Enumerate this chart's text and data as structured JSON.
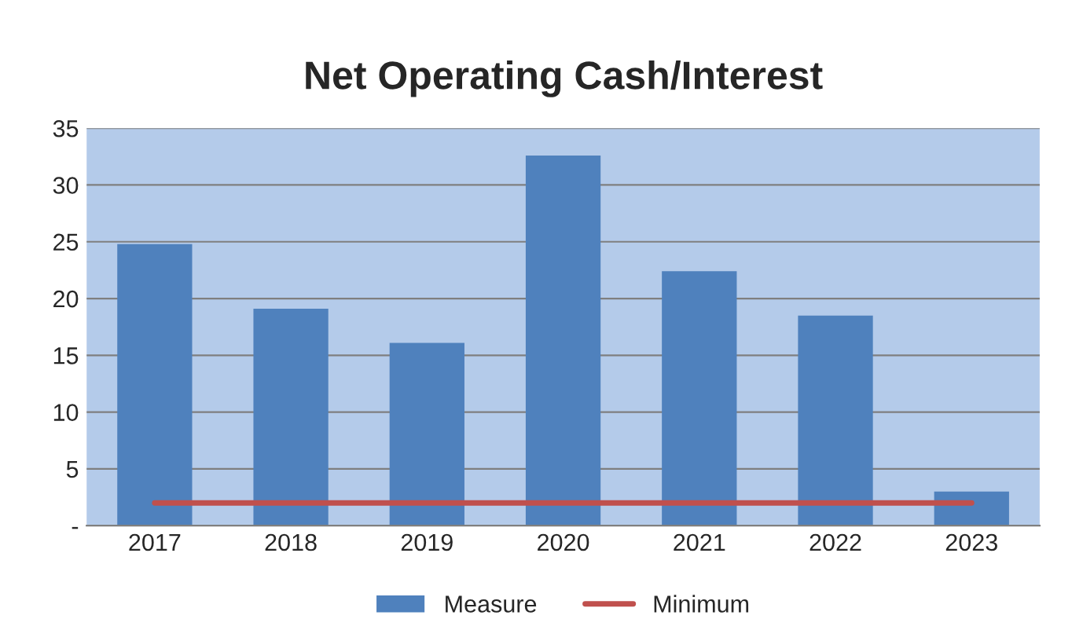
{
  "chart_data": {
    "type": "bar",
    "title": "Net Operating Cash/Interest",
    "categories": [
      "2017",
      "2018",
      "2019",
      "2020",
      "2021",
      "2022",
      "2023"
    ],
    "series": [
      {
        "name": "Measure",
        "color": "#4f81bd",
        "values": [
          24.8,
          19.1,
          16.1,
          32.6,
          22.4,
          18.5,
          3.0
        ]
      },
      {
        "name": "Minimum",
        "type": "line",
        "color": "#c0504d",
        "values": [
          2,
          2,
          2,
          2,
          2,
          2,
          2
        ]
      }
    ],
    "ylim": [
      0,
      35
    ],
    "yticks": [
      {
        "value": 0,
        "label": "-"
      },
      5,
      10,
      15,
      20,
      25,
      30,
      35
    ],
    "grid": "y",
    "legend": "bottom",
    "marker": "none",
    "line_style": "solid"
  }
}
